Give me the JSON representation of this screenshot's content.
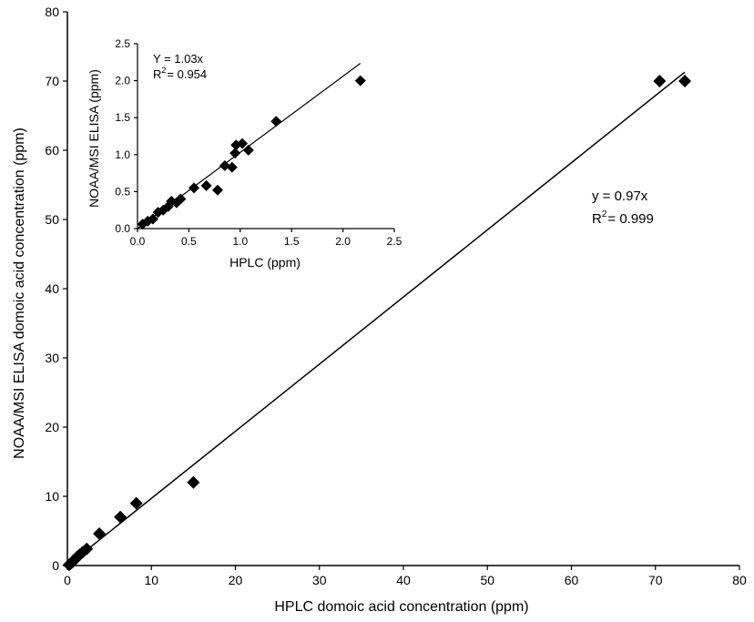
{
  "chart_data": [
    {
      "type": "scatter",
      "xlabel": "HPLC domoic acid concentration (ppm)",
      "ylabel": "NOAA/MSI ELISA domoic acid concentration (ppm)",
      "xlim": [
        0,
        80
      ],
      "ylim": [
        0,
        80
      ],
      "xticks": [
        0,
        10,
        20,
        30,
        40,
        50,
        60,
        70,
        80
      ],
      "yticks": [
        0,
        10,
        20,
        30,
        40,
        50,
        60,
        70,
        80
      ],
      "x_tick_labels": [
        "0",
        "10",
        "20",
        "30",
        "40",
        "50",
        "60",
        "70",
        "80"
      ],
      "y_tick_labels": [
        "0",
        "10",
        "20",
        "30",
        "40",
        "50",
        "60",
        "70",
        "80"
      ],
      "marker": "diamond",
      "points": [
        {
          "x": 0.2,
          "y": 0.1
        },
        {
          "x": 0.4,
          "y": 0.3
        },
        {
          "x": 0.6,
          "y": 0.5
        },
        {
          "x": 0.8,
          "y": 0.8
        },
        {
          "x": 1.0,
          "y": 1.0
        },
        {
          "x": 1.2,
          "y": 1.3
        },
        {
          "x": 1.5,
          "y": 1.6
        },
        {
          "x": 1.8,
          "y": 1.9
        },
        {
          "x": 2.3,
          "y": 2.4
        },
        {
          "x": 3.8,
          "y": 4.6
        },
        {
          "x": 6.3,
          "y": 7.0
        },
        {
          "x": 8.2,
          "y": 9.0
        },
        {
          "x": 15.0,
          "y": 12.0
        },
        {
          "x": 70.5,
          "y": 70.0
        },
        {
          "x": 73.5,
          "y": 70.0
        }
      ],
      "fit": {
        "slope": 0.97,
        "x_range": [
          0,
          73.5
        ]
      },
      "annotation": {
        "equation": "y  = 0.97x",
        "r2_label": "R",
        "r2_sup": "2",
        "r2_value": "= 0.999"
      },
      "grid": false
    },
    {
      "type": "scatter",
      "xlabel": "HPLC (ppm)",
      "ylabel": "NOAA/MSI ELISA (ppm)",
      "xlim": [
        0,
        2.5
      ],
      "ylim": [
        0,
        2.5
      ],
      "xticks": [
        0,
        0.5,
        1.0,
        1.5,
        2.0,
        2.5
      ],
      "yticks": [
        0,
        0.5,
        1.0,
        1.5,
        2.0,
        2.5
      ],
      "x_tick_labels": [
        "0.0",
        "0.5",
        "1.0",
        "1.5",
        "2.0",
        "2.5"
      ],
      "y_tick_labels": [
        "0.0",
        "0.5",
        "1.0",
        "1.5",
        "2.0",
        "2.5"
      ],
      "marker": "diamond",
      "points": [
        {
          "x": 0.05,
          "y": 0.06
        },
        {
          "x": 0.1,
          "y": 0.1
        },
        {
          "x": 0.15,
          "y": 0.13
        },
        {
          "x": 0.2,
          "y": 0.22
        },
        {
          "x": 0.25,
          "y": 0.25
        },
        {
          "x": 0.3,
          "y": 0.3
        },
        {
          "x": 0.33,
          "y": 0.37
        },
        {
          "x": 0.38,
          "y": 0.35
        },
        {
          "x": 0.42,
          "y": 0.4
        },
        {
          "x": 0.55,
          "y": 0.55
        },
        {
          "x": 0.67,
          "y": 0.58
        },
        {
          "x": 0.78,
          "y": 0.52
        },
        {
          "x": 0.85,
          "y": 0.85
        },
        {
          "x": 0.92,
          "y": 0.83
        },
        {
          "x": 0.95,
          "y": 1.02
        },
        {
          "x": 0.96,
          "y": 1.13
        },
        {
          "x": 1.02,
          "y": 1.15
        },
        {
          "x": 1.08,
          "y": 1.06
        },
        {
          "x": 1.35,
          "y": 1.45
        },
        {
          "x": 2.17,
          "y": 2.0
        }
      ],
      "fit": {
        "slope": 1.03,
        "x_range": [
          0,
          2.17
        ]
      },
      "annotation": {
        "equation": "Y = 1.03x",
        "r2_label": "R",
        "r2_sup": "2",
        "r2_value": "= 0.954"
      },
      "grid": false
    }
  ]
}
